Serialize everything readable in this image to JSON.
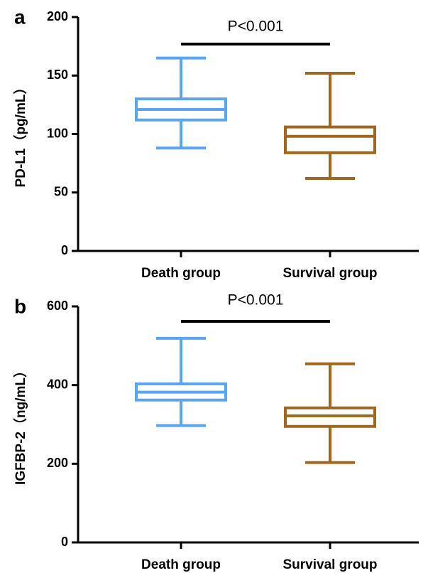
{
  "chart_data": [
    {
      "type": "box",
      "panel_label": "a",
      "ylabel": "PD-L1（pg/mL）",
      "annotation": "P<0.001",
      "categories": [
        "Death group",
        "Survival group"
      ],
      "colors": [
        "#5aa5f0",
        "#a0661e"
      ],
      "values": [
        {
          "min": 88,
          "q1": 112,
          "median": 121,
          "q3": 130,
          "max": 165
        },
        {
          "min": 62,
          "q1": 84,
          "median": 98,
          "q3": 106,
          "max": 152
        }
      ],
      "ylim": [
        0,
        200
      ],
      "yticks": [
        0,
        50,
        100,
        150,
        200
      ]
    },
    {
      "type": "box",
      "panel_label": "b",
      "ylabel": "IGFBP-2（ng/mL）",
      "annotation": "P<0.001",
      "categories": [
        "Death group",
        "Survival group"
      ],
      "colors": [
        "#5aa5f0",
        "#a0661e"
      ],
      "values": [
        {
          "min": 297,
          "q1": 362,
          "median": 382,
          "q3": 403,
          "max": 519
        },
        {
          "min": 203,
          "q1": 295,
          "median": 322,
          "q3": 342,
          "max": 454
        }
      ],
      "ylim": [
        0,
        600
      ],
      "yticks": [
        0,
        200,
        400,
        600
      ]
    }
  ]
}
